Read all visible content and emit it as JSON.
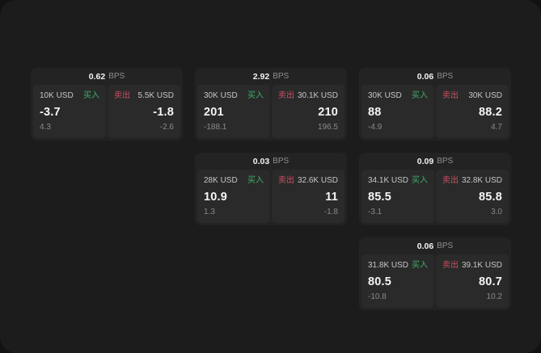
{
  "labels": {
    "bps_suffix": "BPS",
    "buy": "买入",
    "sell": "卖出"
  },
  "colors": {
    "buy": "#3fae6a",
    "sell": "#cb4f63",
    "surface": "#1c1c1c",
    "card": "#232323",
    "cell": "#2a2a2a"
  },
  "cards": [
    {
      "bps": "0.62",
      "buy": {
        "amount": "10K USD",
        "main": "-3.7",
        "sub": "4.3"
      },
      "sell": {
        "amount": "5.5K USD",
        "main": "-1.8",
        "sub": "-2.6"
      }
    },
    {
      "bps": "2.92",
      "buy": {
        "amount": "30K USD",
        "main": "201",
        "sub": "-188.1"
      },
      "sell": {
        "amount": "30.1K USD",
        "main": "210",
        "sub": "196.5"
      }
    },
    {
      "bps": "0.06",
      "buy": {
        "amount": "30K USD",
        "main": "88",
        "sub": "-4.9"
      },
      "sell": {
        "amount": "30K USD",
        "main": "88.2",
        "sub": "4.7"
      }
    },
    {
      "bps": "0.03",
      "buy": {
        "amount": "28K USD",
        "main": "10.9",
        "sub": "1.3"
      },
      "sell": {
        "amount": "32.6K USD",
        "main": "11",
        "sub": "-1.8"
      }
    },
    {
      "bps": "0.09",
      "buy": {
        "amount": "34.1K USD",
        "main": "85.5",
        "sub": "-3.1"
      },
      "sell": {
        "amount": "32.8K USD",
        "main": "85.8",
        "sub": "3.0"
      }
    },
    {
      "bps": "0.06",
      "buy": {
        "amount": "31.8K USD",
        "main": "80.5",
        "sub": "-10.8"
      },
      "sell": {
        "amount": "39.1K USD",
        "main": "80.7",
        "sub": "10.2"
      }
    }
  ]
}
